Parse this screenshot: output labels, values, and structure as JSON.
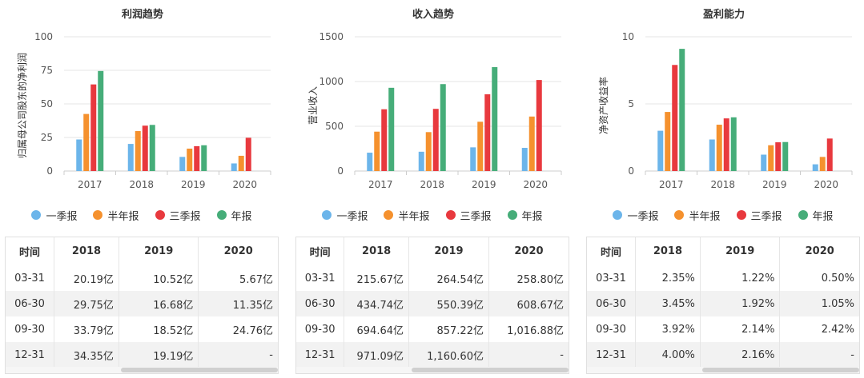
{
  "legend": [
    {
      "label": "一季报",
      "color": "#6cb5ea"
    },
    {
      "label": "半年报",
      "color": "#f5912e"
    },
    {
      "label": "三季报",
      "color": "#e8393e"
    },
    {
      "label": "年报",
      "color": "#46ad79"
    }
  ],
  "chart_data": [
    {
      "type": "bar",
      "title": "利润趋势",
      "ylabel": "归属母公司股东的净利润",
      "xlabel": "",
      "categories": [
        "2017",
        "2018",
        "2019",
        "2020"
      ],
      "ylim": [
        0,
        100
      ],
      "yticks": [
        0,
        25,
        50,
        75,
        100
      ],
      "series": [
        {
          "name": "一季报",
          "values": [
            23.5,
            20.19,
            10.52,
            5.67
          ]
        },
        {
          "name": "半年报",
          "values": [
            42.5,
            29.75,
            16.68,
            11.35
          ]
        },
        {
          "name": "三季报",
          "values": [
            64.5,
            33.79,
            18.52,
            24.76
          ]
        },
        {
          "name": "年报",
          "values": [
            74.5,
            34.35,
            19.19,
            null
          ]
        }
      ]
    },
    {
      "type": "bar",
      "title": "收入趋势",
      "ylabel": "营业收入",
      "xlabel": "",
      "categories": [
        "2017",
        "2018",
        "2019",
        "2020"
      ],
      "ylim": [
        0,
        1500
      ],
      "yticks": [
        0,
        500,
        1000,
        1500
      ],
      "series": [
        {
          "name": "一季报",
          "values": [
            205,
            215.67,
            264.54,
            258.8
          ]
        },
        {
          "name": "半年报",
          "values": [
            440,
            434.74,
            550.39,
            608.67
          ]
        },
        {
          "name": "三季报",
          "values": [
            690,
            694.64,
            857.22,
            1016.88
          ]
        },
        {
          "name": "年报",
          "values": [
            930,
            971.09,
            1160.6,
            null
          ]
        }
      ]
    },
    {
      "type": "bar",
      "title": "盈利能力",
      "ylabel": "净资产收益率",
      "xlabel": "",
      "categories": [
        "2017",
        "2018",
        "2019",
        "2020"
      ],
      "ylim": [
        0,
        10
      ],
      "yticks": [
        0,
        5,
        10
      ],
      "series": [
        {
          "name": "一季报",
          "values": [
            3.0,
            2.35,
            1.22,
            0.5
          ]
        },
        {
          "name": "半年报",
          "values": [
            4.4,
            3.45,
            1.92,
            1.05
          ]
        },
        {
          "name": "三季报",
          "values": [
            7.9,
            3.92,
            2.14,
            2.42
          ]
        },
        {
          "name": "年报",
          "values": [
            9.1,
            4.0,
            2.16,
            null
          ]
        }
      ]
    }
  ],
  "tables": [
    {
      "headers": [
        "时间",
        "2018",
        "2019",
        "2020"
      ],
      "rows": [
        [
          "03-31",
          "20.19亿",
          "10.52亿",
          "5.67亿"
        ],
        [
          "06-30",
          "29.75亿",
          "16.68亿",
          "11.35亿"
        ],
        [
          "09-30",
          "33.79亿",
          "18.52亿",
          "24.76亿"
        ],
        [
          "12-31",
          "34.35亿",
          "19.19亿",
          "-"
        ]
      ]
    },
    {
      "headers": [
        "时间",
        "2018",
        "2019",
        "2020"
      ],
      "rows": [
        [
          "03-31",
          "215.67亿",
          "264.54亿",
          "258.80亿"
        ],
        [
          "06-30",
          "434.74亿",
          "550.39亿",
          "608.67亿"
        ],
        [
          "09-30",
          "694.64亿",
          "857.22亿",
          "1,016.88亿"
        ],
        [
          "12-31",
          "971.09亿",
          "1,160.60亿",
          "-"
        ]
      ]
    },
    {
      "headers": [
        "时间",
        "2018",
        "2019",
        "2020"
      ],
      "rows": [
        [
          "03-31",
          "2.35%",
          "1.22%",
          "0.50%"
        ],
        [
          "06-30",
          "3.45%",
          "1.92%",
          "1.05%"
        ],
        [
          "09-30",
          "3.92%",
          "2.14%",
          "2.42%"
        ],
        [
          "12-31",
          "4.00%",
          "2.16%",
          "-"
        ]
      ]
    }
  ]
}
